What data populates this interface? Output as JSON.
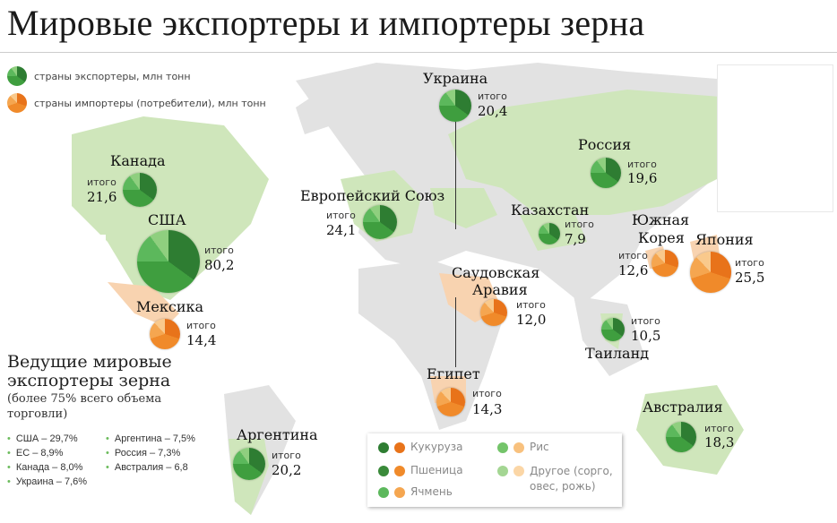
{
  "title": "Мировые экспортеры и импортеры зерна",
  "legend_top": {
    "exporters": "страны экспортеры, млн тонн",
    "importers": "страны импортеры (потребители), млн тонн"
  },
  "total_label": "итого",
  "countries": [
    {
      "name": "Украина",
      "total": "20,4",
      "type": "exporter"
    },
    {
      "name": "Россия",
      "total": "19,6",
      "type": "exporter"
    },
    {
      "name": "Канада",
      "total": "21,6",
      "type": "exporter"
    },
    {
      "name": "США",
      "total": "80,2",
      "type": "exporter"
    },
    {
      "name": "Европейский Союз",
      "total": "24,1",
      "type": "exporter"
    },
    {
      "name": "Казахстан",
      "total": "7,9",
      "type": "exporter"
    },
    {
      "name": "Южная",
      "name2": "Корея",
      "total": "12,6",
      "type": "importer"
    },
    {
      "name": "Япония",
      "total": "25,5",
      "type": "importer"
    },
    {
      "name": "Саудовская",
      "name2": "Аравия",
      "total": "12,0",
      "type": "importer"
    },
    {
      "name": "Мексика",
      "total": "14,4",
      "type": "importer"
    },
    {
      "name": "Таиланд",
      "total": "10,5",
      "type": "exporter"
    },
    {
      "name": "Египет",
      "total": "14,3",
      "type": "importer"
    },
    {
      "name": "Австралия",
      "total": "18,3",
      "type": "exporter"
    },
    {
      "name": "Аргентина",
      "total": "20,2",
      "type": "exporter"
    }
  ],
  "leaders": {
    "title1": "Ведущие мировые",
    "title2": "экспортеры зерна",
    "sub1": "(более 75% всего объема",
    "sub2": "торговли)",
    "items": [
      "США – 29,7%",
      "Аргентина – 7,5%",
      "ЕС – 8,9%",
      "Россия – 7,3%",
      "Канада – 8,0%",
      "Австралия – 6,8",
      "Украина – 7,6%"
    ]
  },
  "crops": [
    "Кукуруза",
    "Пшеница",
    "Ячмень",
    "Рис",
    "Другое (сорго,",
    "овес, рожь)"
  ],
  "colors": {
    "exporter": "#3f9e3f",
    "importer": "#f08a2a"
  }
}
